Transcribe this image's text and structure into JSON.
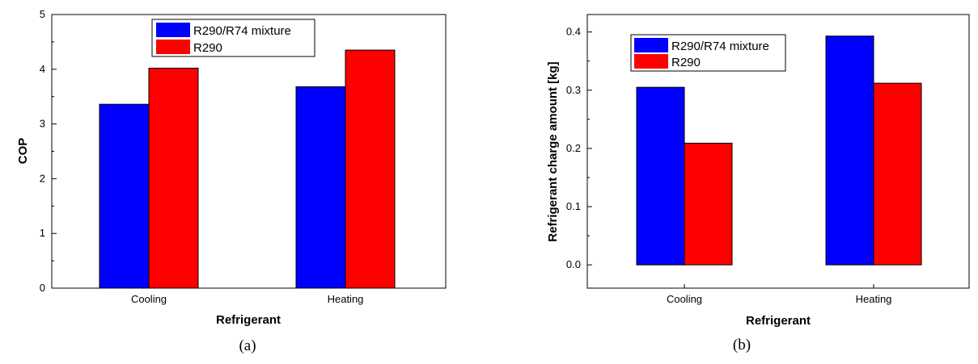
{
  "chart_data": [
    {
      "type": "bar",
      "caption": "(a)",
      "title": "",
      "xlabel": "Refrigerant",
      "ylabel": "COP",
      "categories": [
        "Cooling",
        "Heating"
      ],
      "series": [
        {
          "name": "R290/R74 mixture",
          "color": "#0000ff",
          "values": [
            3.36,
            3.68
          ]
        },
        {
          "name": "R290",
          "color": "#ff0000",
          "values": [
            4.02,
            4.35
          ]
        }
      ],
      "ylim": [
        0,
        5
      ],
      "yticks": [
        0,
        1,
        2,
        3,
        4,
        5
      ],
      "ytick_labels": [
        "0",
        "1",
        "2",
        "3",
        "4",
        "5"
      ],
      "grid": false,
      "legend": "top-center"
    },
    {
      "type": "bar",
      "caption": "(b)",
      "title": "",
      "xlabel": "Refrigerant",
      "ylabel": "Refrigerant charge amount [kg]",
      "categories": [
        "Cooling",
        "Heating"
      ],
      "series": [
        {
          "name": "R290/R74 mixture",
          "color": "#0000ff",
          "values": [
            0.305,
            0.393
          ]
        },
        {
          "name": "R290",
          "color": "#ff0000",
          "values": [
            0.209,
            0.312
          ]
        }
      ],
      "ylim": [
        -0.04,
        0.43
      ],
      "yticks": [
        0.0,
        0.1,
        0.2,
        0.3,
        0.4
      ],
      "ytick_labels": [
        "0.0",
        "0.1",
        "0.2",
        "0.3",
        "0.4"
      ],
      "grid": false,
      "legend": "top-left"
    }
  ]
}
